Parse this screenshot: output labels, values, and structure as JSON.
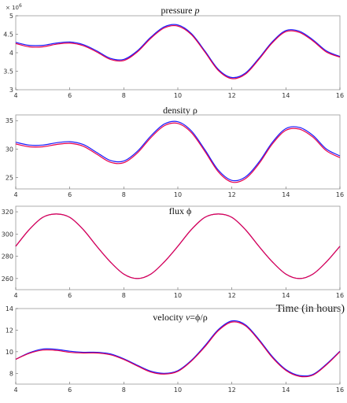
{
  "xlabel": "Time (in hours)",
  "colors": {
    "series_a": "#1a1aff",
    "series_b": "#e8004a"
  },
  "chart_data": [
    {
      "type": "line",
      "title_text": "pressure ",
      "title_var": "p",
      "exponent_label": "× 10",
      "exponent_power": "6",
      "xlim": [
        4,
        16
      ],
      "ylim": [
        3,
        5
      ],
      "xticks": [
        4,
        6,
        8,
        10,
        12,
        14,
        16
      ],
      "yticks": [
        3,
        3.5,
        4,
        4.5,
        5
      ],
      "ytick_labels": [
        "3",
        "3.5",
        "4",
        "4.5",
        "5"
      ],
      "x": [
        4,
        4.5,
        5,
        5.5,
        6,
        6.5,
        7,
        7.5,
        8,
        8.5,
        9,
        9.5,
        10,
        10.5,
        11,
        11.5,
        12,
        12.5,
        13,
        13.5,
        14,
        14.5,
        15,
        15.5,
        16
      ],
      "series": [
        {
          "values": [
            4.28,
            4.2,
            4.2,
            4.26,
            4.29,
            4.22,
            4.05,
            3.85,
            3.82,
            4.05,
            4.42,
            4.7,
            4.75,
            4.52,
            4.05,
            3.55,
            3.33,
            3.45,
            3.85,
            4.3,
            4.6,
            4.58,
            4.35,
            4.05,
            3.9
          ]
        },
        {
          "values": [
            4.25,
            4.16,
            4.16,
            4.23,
            4.26,
            4.19,
            4.02,
            3.82,
            3.79,
            4.02,
            4.39,
            4.67,
            4.72,
            4.49,
            4.02,
            3.52,
            3.3,
            3.42,
            3.82,
            4.27,
            4.57,
            4.55,
            4.32,
            4.02,
            3.88
          ]
        }
      ]
    },
    {
      "type": "line",
      "title_text": "density ρ",
      "xlim": [
        4,
        16
      ],
      "ylim": [
        23,
        36
      ],
      "xticks": [
        4,
        6,
        8,
        10,
        12,
        14,
        16
      ],
      "yticks": [
        25,
        30,
        35
      ],
      "ytick_labels": [
        "25",
        "30",
        "35"
      ],
      "x": [
        4,
        4.5,
        5,
        5.5,
        6,
        6.5,
        7,
        7.5,
        8,
        8.5,
        9,
        9.5,
        10,
        10.5,
        11,
        11.5,
        12,
        12.5,
        13,
        13.5,
        14,
        14.5,
        15,
        15.5,
        16
      ],
      "series": [
        {
          "values": [
            31.2,
            30.7,
            30.7,
            31.1,
            31.3,
            30.8,
            29.4,
            28.0,
            27.9,
            29.6,
            32.3,
            34.4,
            34.8,
            33.2,
            29.9,
            26.3,
            24.5,
            25.1,
            27.7,
            31.2,
            33.6,
            33.8,
            32.4,
            30.0,
            28.8
          ]
        },
        {
          "values": [
            30.9,
            30.4,
            30.4,
            30.8,
            31.0,
            30.5,
            29.1,
            27.7,
            27.6,
            29.3,
            32.0,
            34.1,
            34.5,
            32.9,
            29.6,
            26.0,
            24.2,
            24.8,
            27.4,
            30.9,
            33.3,
            33.5,
            32.1,
            29.7,
            28.5
          ]
        }
      ]
    },
    {
      "type": "line",
      "title_text": "flux ϕ",
      "xlim": [
        4,
        16
      ],
      "ylim": [
        250,
        325
      ],
      "xticks": [
        4,
        6,
        8,
        10,
        12,
        14,
        16
      ],
      "yticks": [
        260,
        280,
        300,
        320
      ],
      "ytick_labels": [
        "260",
        "280",
        "300",
        "320"
      ],
      "x": [
        4,
        4.5,
        5,
        5.5,
        6,
        6.5,
        7,
        7.5,
        8,
        8.5,
        9,
        9.5,
        10,
        10.5,
        11,
        11.5,
        12,
        12.5,
        13,
        13.5,
        14,
        14.5,
        15,
        15.5,
        16
      ],
      "series": [
        {
          "values": [
            289,
            304,
            315,
            318,
            315,
            304,
            289,
            275,
            264,
            260,
            264,
            275,
            289,
            304,
            315,
            318,
            315,
            304,
            289,
            275,
            264,
            260,
            264,
            275,
            289
          ]
        },
        {
          "values": [
            289,
            304,
            315,
            318,
            315,
            304,
            289,
            275,
            264,
            260,
            264,
            275,
            289,
            304,
            315,
            318,
            315,
            304,
            289,
            275,
            264,
            260,
            264,
            275,
            289
          ]
        }
      ]
    },
    {
      "type": "line",
      "title_text": "velocity  ",
      "title_var": "v",
      "title_suffix": "=ϕ/ρ",
      "xlim": [
        4,
        16
      ],
      "ylim": [
        7,
        14
      ],
      "xticks": [
        4,
        6,
        8,
        10,
        12,
        14,
        16
      ],
      "yticks": [
        8,
        10,
        12,
        14
      ],
      "ytick_labels": [
        "8",
        "10",
        "12",
        "14"
      ],
      "x": [
        4,
        4.5,
        5,
        5.5,
        6,
        6.5,
        7,
        7.5,
        8,
        8.5,
        9,
        9.5,
        10,
        10.5,
        11,
        11.5,
        12,
        12.5,
        13,
        13.5,
        14,
        14.5,
        15,
        15.5,
        16
      ],
      "series": [
        {
          "values": [
            9.3,
            9.9,
            10.25,
            10.22,
            10.05,
            9.95,
            9.95,
            9.8,
            9.35,
            8.75,
            8.2,
            8.0,
            8.25,
            9.2,
            10.55,
            12.05,
            12.85,
            12.5,
            11.15,
            9.55,
            8.35,
            7.8,
            7.9,
            8.85,
            10.05
          ]
        },
        {
          "values": [
            9.3,
            9.85,
            10.15,
            10.12,
            9.95,
            9.88,
            9.88,
            9.72,
            9.28,
            8.68,
            8.12,
            7.93,
            8.18,
            9.13,
            10.45,
            11.95,
            12.75,
            12.4,
            11.05,
            9.45,
            8.27,
            7.72,
            7.83,
            8.78,
            10.0
          ]
        }
      ]
    }
  ]
}
